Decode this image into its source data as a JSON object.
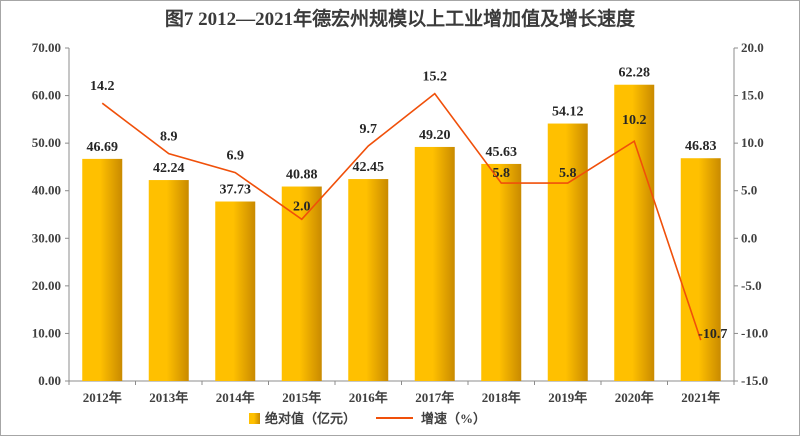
{
  "chart_data": {
    "type": "bar",
    "title": "图7   2012—2021年德宏州规模以上工业增加值及增长速度",
    "categories": [
      "2012年",
      "2013年",
      "2014年",
      "2015年",
      "2016年",
      "2017年",
      "2018年",
      "2019年",
      "2020年",
      "2021年"
    ],
    "series": [
      {
        "name": "绝对值（亿元）",
        "type": "bar",
        "axis": "left",
        "values": [
          46.69,
          42.24,
          37.73,
          40.88,
          42.45,
          49.2,
          45.63,
          54.12,
          62.28,
          46.83
        ],
        "labels": [
          "46.69",
          "42.24",
          "37.73",
          "40.88",
          "42.45",
          "49.20",
          "45.63",
          "54.12",
          "62.28",
          "46.83"
        ]
      },
      {
        "name": "增速（%）",
        "type": "line",
        "axis": "right",
        "values": [
          14.2,
          8.9,
          6.9,
          2.0,
          9.7,
          15.2,
          5.8,
          5.8,
          10.2,
          -10.7
        ],
        "labels": [
          "14.2",
          "8.9",
          "6.9",
          "2.0",
          "9.7",
          "15.2",
          "5.8",
          "5.8",
          "10.2",
          "-10.7"
        ]
      }
    ],
    "ylim": [
      0,
      70
    ],
    "y_ticks": [
      "0.00",
      "10.00",
      "20.00",
      "30.00",
      "40.00",
      "50.00",
      "60.00",
      "70.00"
    ],
    "y2lim": [
      -15,
      20
    ],
    "y2_ticks": [
      "-15.0",
      "-10.0",
      "-5.0",
      "0.0",
      "5.0",
      "10.0",
      "15.0",
      "20.0"
    ],
    "grid": false,
    "legend": "bottom",
    "colors": {
      "bar_light": "#FFC000",
      "bar_dark": "#C98A00",
      "line": "#F0500A",
      "axis": "#8c8c8c"
    }
  }
}
